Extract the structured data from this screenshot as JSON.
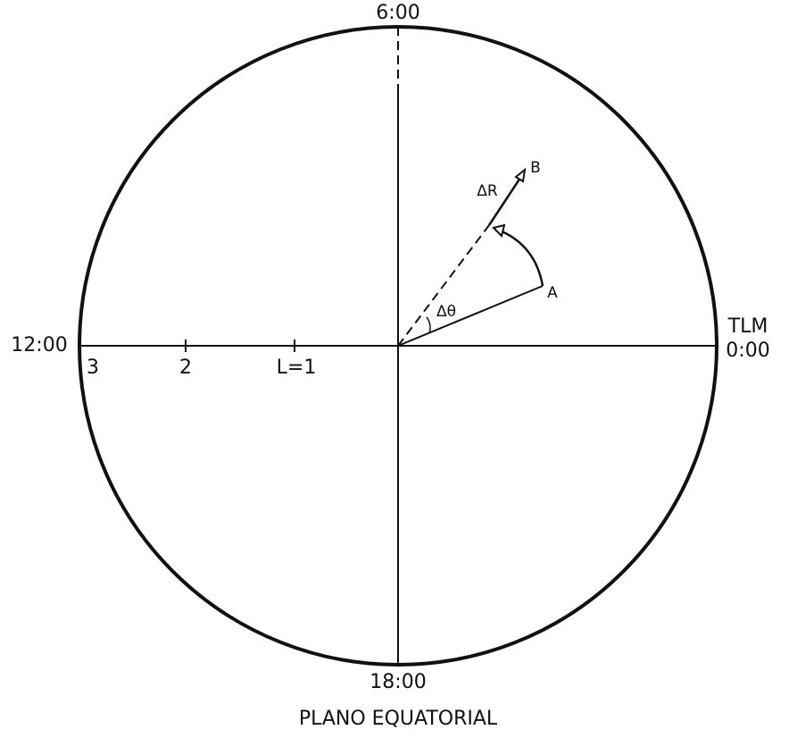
{
  "labels": {
    "top": "6:00",
    "left": "12:00",
    "right_top": "TLM",
    "right_bottom": "0:00",
    "bottom": "18:00",
    "caption": "PLANO EQUATORIAL",
    "l3": "3",
    "l2": "2",
    "l1": "L=1",
    "point_a": "A",
    "point_b": "B",
    "delta_r": "ΔR",
    "delta_theta": "Δθ"
  }
}
